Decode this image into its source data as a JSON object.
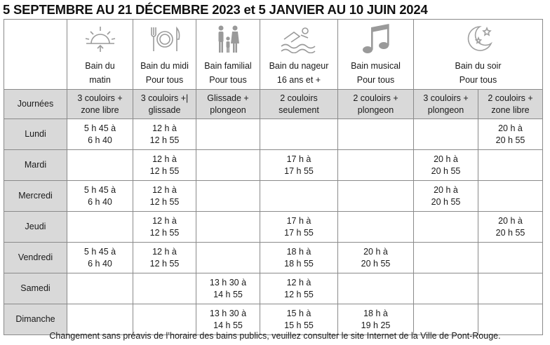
{
  "title": "5 SEPTEMBRE AU 21 DÉCEMBRE 2023 et 5 JANVIER AU 10 JUIN 2024",
  "columns": [
    {
      "icon": "sunrise-icon",
      "label": "Bain du\nmatin"
    },
    {
      "icon": "plate-cutlery-icon",
      "label": "Bain du midi\nPour tous"
    },
    {
      "icon": "family-icon",
      "label": "Bain familial\nPour tous"
    },
    {
      "icon": "swimmer-icon",
      "label": "Bain du nageur\n16 ans et +"
    },
    {
      "icon": "music-note-icon",
      "label": "Bain musical\nPour tous"
    },
    {
      "icon": "moon-stars-icon",
      "label": "Bain du soir\nPour tous"
    }
  ],
  "subheader": {
    "first": "Journées",
    "cells": [
      "3 couloirs +\nzone libre",
      "3 couloirs +|\nglissade",
      "Glissade +\nplongeon",
      "2 couloirs\nseulement",
      "2 couloirs +\nplongeon",
      "3 couloirs +\nplongeon",
      "2 couloirs +\nzone libre"
    ]
  },
  "rows": [
    {
      "day": "Lundi",
      "cells": [
        "5 h 45 à\n6 h 40",
        "12 h à\n12 h 55",
        "",
        "",
        "",
        "",
        "20 h à\n20 h 55"
      ]
    },
    {
      "day": "Mardi",
      "cells": [
        "",
        "12 h à\n12 h 55",
        "",
        "17 h à\n17 h 55",
        "",
        "20 h à\n20 h 55",
        ""
      ]
    },
    {
      "day": "Mercredi",
      "cells": [
        "5 h 45 à\n6 h 40",
        "12 h à\n12 h 55",
        "",
        "",
        "",
        "20 h à\n20 h 55",
        ""
      ]
    },
    {
      "day": "Jeudi",
      "cells": [
        "",
        "12 h à\n12 h 55",
        "",
        "17 h à\n17 h 55",
        "",
        "",
        "20 h à\n20 h 55"
      ]
    },
    {
      "day": "Vendredi",
      "cells": [
        "5 h 45 à\n6 h 40",
        "12 h à\n12 h 55",
        "",
        "18 h à\n18 h 55",
        "20 h à\n20 h 55",
        "",
        ""
      ]
    },
    {
      "day": "Samedi",
      "cells": [
        "",
        "",
        "13 h 30 à\n14 h 55",
        "12 h à\n12 h 55",
        "",
        "",
        ""
      ]
    },
    {
      "day": "Dimanche",
      "cells": [
        "",
        "",
        "13 h 30 à\n14 h 55",
        "15 h à\n15 h 55",
        "18 h à\n19 h 25",
        "",
        ""
      ]
    }
  ],
  "note": "Changement sans préavis de l’horaire des bains publics, veuillez consulter le site Internet de la Ville de Pont-Rouge."
}
